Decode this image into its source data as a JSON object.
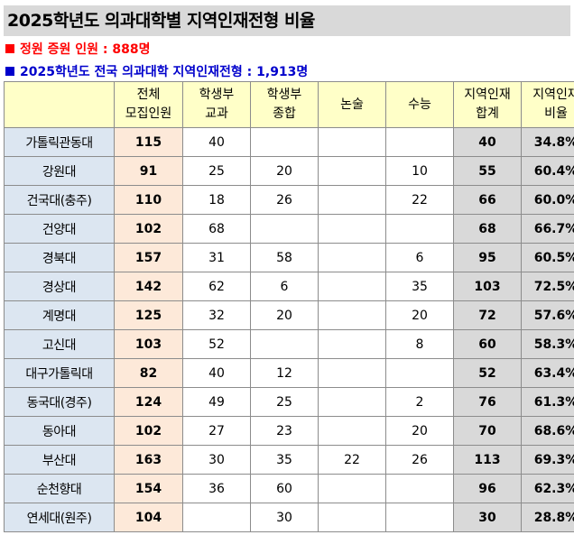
{
  "title": "2025학년도 의과대학별 지역인재전형 비율",
  "notes": {
    "quota_increase": "정원 증원 인원 : 888명",
    "regional_total": "2025학년도 전국 의과대학 지역인재전형 : 1,913명"
  },
  "colors": {
    "title_bg": "#d9d9d9",
    "header_bg": "#ffffc8",
    "university_bg": "#dce6f1",
    "total_bg": "#fde9d9",
    "sum_bg": "#d9d9d9",
    "note_red": "#ff0000",
    "note_blue": "#0000cc"
  },
  "table": {
    "headers": {
      "university": "",
      "total_l1": "전체",
      "total_l2": "모집인원",
      "student_record_grade_l1": "학생부",
      "student_record_grade_l2": "교과",
      "student_record_comprehensive_l1": "학생부",
      "student_record_comprehensive_l2": "종합",
      "essay": "논술",
      "csat": "수능",
      "regional_sum_l1": "지역인재",
      "regional_sum_l2": "합계",
      "regional_ratio_l1": "지역인재",
      "regional_ratio_l2": "비율"
    },
    "rows": [
      {
        "university": "가톨릭관동대",
        "total": "115",
        "grade": "40",
        "comprehensive": "",
        "essay": "",
        "csat": "",
        "sum": "40",
        "ratio": "34.8%"
      },
      {
        "university": "강원대",
        "total": "91",
        "grade": "25",
        "comprehensive": "20",
        "essay": "",
        "csat": "10",
        "sum": "55",
        "ratio": "60.4%"
      },
      {
        "university": "건국대(충주)",
        "total": "110",
        "grade": "18",
        "comprehensive": "26",
        "essay": "",
        "csat": "22",
        "sum": "66",
        "ratio": "60.0%"
      },
      {
        "university": "건양대",
        "total": "102",
        "grade": "68",
        "comprehensive": "",
        "essay": "",
        "csat": "",
        "sum": "68",
        "ratio": "66.7%"
      },
      {
        "university": "경북대",
        "total": "157",
        "grade": "31",
        "comprehensive": "58",
        "essay": "",
        "csat": "6",
        "sum": "95",
        "ratio": "60.5%"
      },
      {
        "university": "경상대",
        "total": "142",
        "grade": "62",
        "comprehensive": "6",
        "essay": "",
        "csat": "35",
        "sum": "103",
        "ratio": "72.5%"
      },
      {
        "university": "계명대",
        "total": "125",
        "grade": "32",
        "comprehensive": "20",
        "essay": "",
        "csat": "20",
        "sum": "72",
        "ratio": "57.6%"
      },
      {
        "university": "고신대",
        "total": "103",
        "grade": "52",
        "comprehensive": "",
        "essay": "",
        "csat": "8",
        "sum": "60",
        "ratio": "58.3%"
      },
      {
        "university": "대구가톨릭대",
        "total": "82",
        "grade": "40",
        "comprehensive": "12",
        "essay": "",
        "csat": "",
        "sum": "52",
        "ratio": "63.4%"
      },
      {
        "university": "동국대(경주)",
        "total": "124",
        "grade": "49",
        "comprehensive": "25",
        "essay": "",
        "csat": "2",
        "sum": "76",
        "ratio": "61.3%"
      },
      {
        "university": "동아대",
        "total": "102",
        "grade": "27",
        "comprehensive": "23",
        "essay": "",
        "csat": "20",
        "sum": "70",
        "ratio": "68.6%"
      },
      {
        "university": "부산대",
        "total": "163",
        "grade": "30",
        "comprehensive": "35",
        "essay": "22",
        "csat": "26",
        "sum": "113",
        "ratio": "69.3%"
      },
      {
        "university": "순천향대",
        "total": "154",
        "grade": "36",
        "comprehensive": "60",
        "essay": "",
        "csat": "",
        "sum": "96",
        "ratio": "62.3%"
      },
      {
        "university": "연세대(원주)",
        "total": "104",
        "grade": "",
        "comprehensive": "30",
        "essay": "",
        "csat": "",
        "sum": "30",
        "ratio": "28.8%"
      }
    ]
  }
}
